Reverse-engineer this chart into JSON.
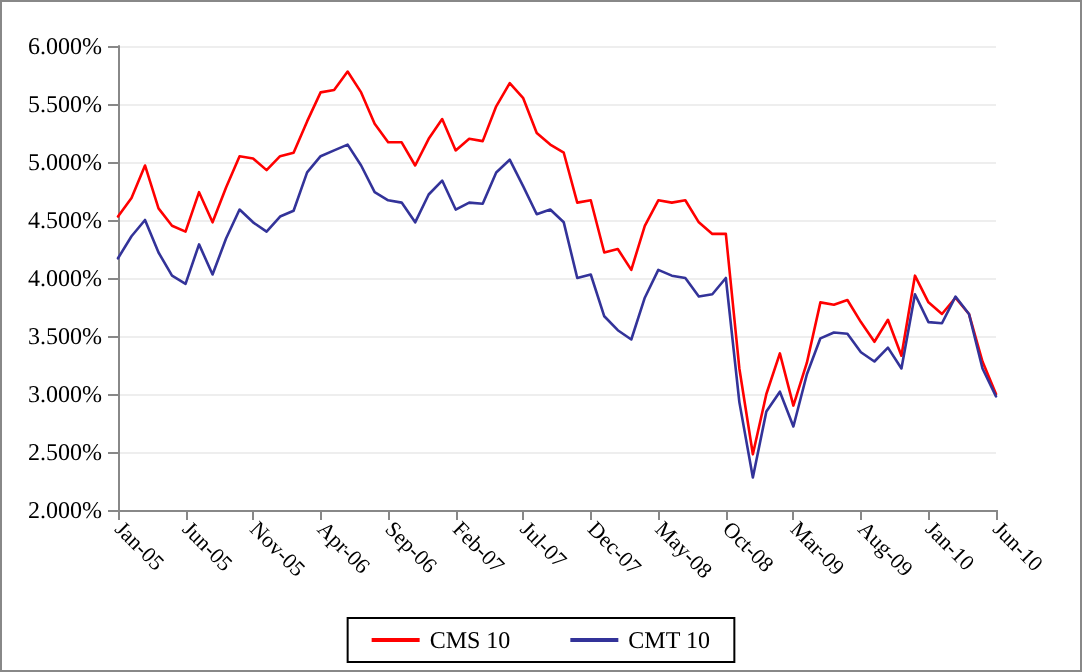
{
  "chart_data": {
    "type": "line",
    "categories": [
      "Jan-05",
      null,
      null,
      null,
      null,
      "Jun-05",
      null,
      null,
      null,
      null,
      "Nov-05",
      null,
      null,
      null,
      null,
      "Apr-06",
      null,
      null,
      null,
      null,
      "Sep-06",
      null,
      null,
      null,
      null,
      "Feb-07",
      null,
      null,
      null,
      null,
      "Jul-07",
      null,
      null,
      null,
      null,
      "Dec-07",
      null,
      null,
      null,
      null,
      "May-08",
      null,
      null,
      null,
      null,
      "Oct-08",
      null,
      null,
      null,
      null,
      "Mar-09",
      null,
      null,
      null,
      null,
      "Aug-09",
      null,
      null,
      null,
      null,
      "Jan-10",
      null,
      null,
      null,
      null,
      "Jun-10"
    ],
    "series": [
      {
        "name": "CMS 10",
        "color": "#ff0000",
        "values": [
          4.53,
          4.69,
          4.97,
          4.6,
          4.45,
          4.4,
          4.74,
          4.48,
          4.78,
          5.05,
          5.03,
          4.93,
          5.05,
          5.08,
          5.35,
          5.6,
          5.62,
          5.78,
          5.6,
          5.33,
          5.17,
          5.17,
          4.97,
          5.2,
          5.37,
          5.1,
          5.2,
          5.18,
          5.48,
          5.68,
          5.55,
          5.25,
          5.15,
          5.08,
          4.65,
          4.67,
          4.22,
          4.25,
          4.07,
          4.45,
          4.67,
          4.65,
          4.67,
          4.48,
          4.38,
          4.38,
          3.22,
          2.48,
          3.0,
          3.35,
          2.9,
          3.27,
          3.79,
          3.77,
          3.81,
          3.62,
          3.45,
          3.64,
          3.33,
          4.02,
          3.79,
          3.69,
          3.83,
          3.69,
          3.28,
          3.0
        ]
      },
      {
        "name": "CMT 10",
        "color": "#333399",
        "values": [
          4.17,
          4.36,
          4.5,
          4.22,
          4.02,
          3.95,
          4.29,
          4.03,
          4.34,
          4.59,
          4.48,
          4.4,
          4.53,
          4.58,
          4.91,
          5.05,
          5.1,
          5.15,
          4.97,
          4.74,
          4.67,
          4.65,
          4.48,
          4.72,
          4.84,
          4.59,
          4.65,
          4.64,
          4.91,
          5.02,
          4.79,
          4.55,
          4.59,
          4.48,
          4.0,
          4.03,
          3.67,
          3.55,
          3.47,
          3.83,
          4.07,
          4.02,
          4.0,
          3.84,
          3.86,
          4.0,
          2.93,
          2.28,
          2.85,
          3.02,
          2.72,
          3.17,
          3.48,
          3.53,
          3.52,
          3.36,
          3.28,
          3.4,
          3.22,
          3.86,
          3.62,
          3.61,
          3.84,
          3.69,
          3.22,
          2.98
        ]
      }
    ],
    "ylim": [
      2,
      6
    ],
    "yticks": [
      {
        "value": 2,
        "label": "2.000%"
      },
      {
        "value": 2.5,
        "label": "2.500%"
      },
      {
        "value": 3,
        "label": "3.000%"
      },
      {
        "value": 3.5,
        "label": "3.500%"
      },
      {
        "value": 4,
        "label": "4.000%"
      },
      {
        "value": 4.5,
        "label": "4.500%"
      },
      {
        "value": 5,
        "label": "5.000%"
      },
      {
        "value": 5.5,
        "label": "5.500%"
      },
      {
        "value": 6,
        "label": "6.000%"
      }
    ],
    "grid": "y",
    "legend": "bottom",
    "marker": "none",
    "line_style": "solid"
  }
}
